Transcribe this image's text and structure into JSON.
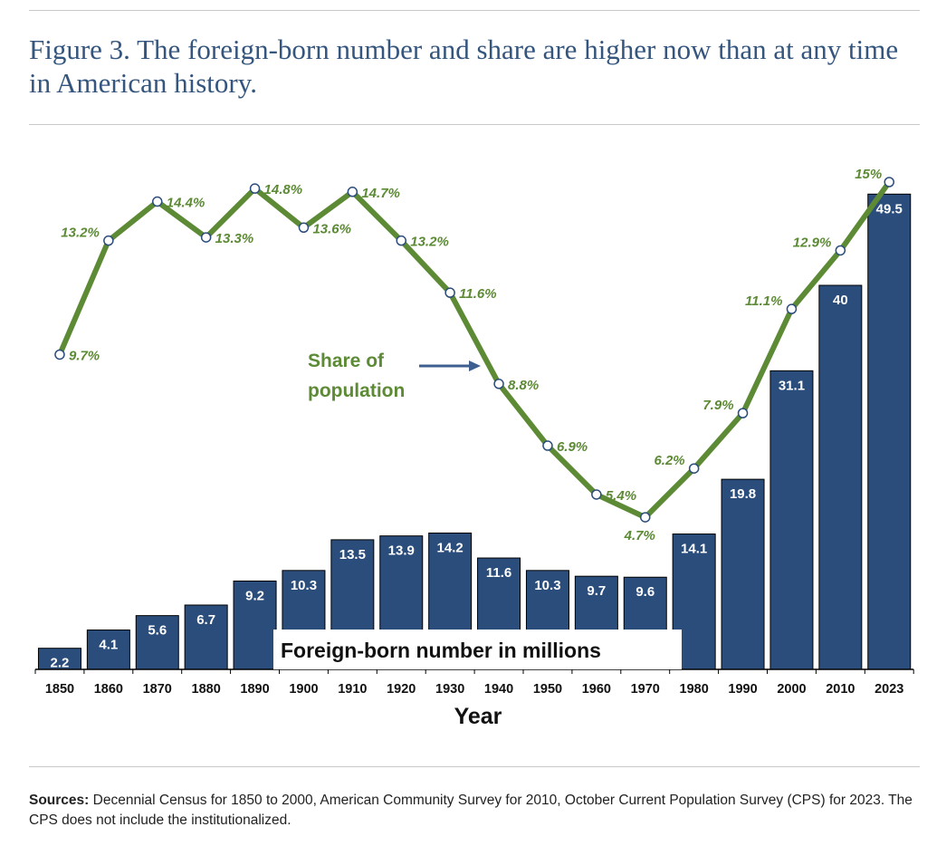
{
  "figure": {
    "title": "Figure 3. The foreign-born number and share are higher now than at any time in American history."
  },
  "sources": {
    "label": "Sources:",
    "text": "Decennial Census for 1850 to 2000, American Community Survey for 2010, October Current Population Survey (CPS) for 2023. The CPS does not include the institutionalized."
  },
  "colors": {
    "bar": "#2b4d7c",
    "line": "#5c8a35",
    "title": "#34557e"
  },
  "chart_data": {
    "type": "bar",
    "xlabel": "Year",
    "categories": [
      "1850",
      "1860",
      "1870",
      "1880",
      "1890",
      "1900",
      "1910",
      "1920",
      "1930",
      "1940",
      "1950",
      "1960",
      "1970",
      "1980",
      "1990",
      "2000",
      "2010",
      "2023"
    ],
    "series": [
      {
        "name": "Foreign-born number in millions",
        "type": "bar",
        "values": [
          2.2,
          4.1,
          5.6,
          6.7,
          9.2,
          10.3,
          13.5,
          13.9,
          14.2,
          11.6,
          10.3,
          9.7,
          9.6,
          14.1,
          19.8,
          31.1,
          40,
          49.5
        ],
        "labels": [
          "2.2",
          "4.1",
          "5.6",
          "6.7",
          "9.2",
          "10.3",
          "13.5",
          "13.9",
          "14.2",
          "11.6",
          "10.3",
          "9.7",
          "9.6",
          "14.1",
          "19.8",
          "31.1",
          "40",
          "49.5"
        ],
        "ylim": [
          0,
          50
        ]
      },
      {
        "name": "Share of population",
        "type": "line",
        "values": [
          9.7,
          13.2,
          14.4,
          13.3,
          14.8,
          13.6,
          14.7,
          13.2,
          11.6,
          8.8,
          6.9,
          5.4,
          4.7,
          6.2,
          7.9,
          11.1,
          12.9,
          15
        ],
        "labels": [
          "9.7%",
          "13.2%",
          "14.4%",
          "13.3%",
          "14.8%",
          "13.6%",
          "14.7%",
          "13.2%",
          "11.6%",
          "8.8%",
          "6.9%",
          "5.4%",
          "4.7%",
          "6.2%",
          "7.9%",
          "11.1%",
          "12.9%",
          "15%"
        ],
        "ylim": [
          0,
          15
        ]
      }
    ],
    "annotations": {
      "line_label_line1": "Share of",
      "line_label_line2": "population",
      "bar_label": "Foreign-born number in millions"
    }
  }
}
